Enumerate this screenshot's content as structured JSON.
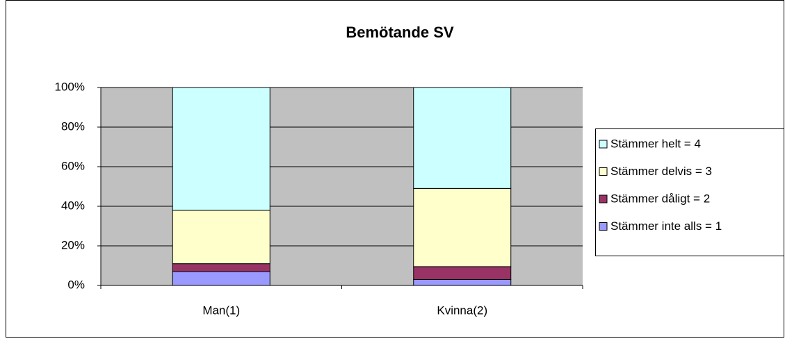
{
  "chart_data": {
    "type": "bar",
    "stacked": true,
    "title": "Bemötande SV",
    "categories": [
      "Man(1)",
      "Kvinna(2)"
    ],
    "series": [
      {
        "name": "Stämmer inte alls = 1",
        "color": "#9999ff",
        "values": [
          7,
          3
        ]
      },
      {
        "name": "Stämmer dåligt = 2",
        "color": "#993366",
        "values": [
          4,
          6.5
        ]
      },
      {
        "name": "Stämmer delvis = 3",
        "color": "#ffffcc",
        "values": [
          27,
          39.5
        ]
      },
      {
        "name": "Stämmer helt = 4",
        "color": "#ccffff",
        "values": [
          62,
          51
        ]
      }
    ],
    "ylim": [
      0,
      100
    ],
    "yticks": [
      {
        "value": 0,
        "label": "0%"
      },
      {
        "value": 20,
        "label": "20%"
      },
      {
        "value": 40,
        "label": "40%"
      },
      {
        "value": 60,
        "label": "60%"
      },
      {
        "value": 80,
        "label": "80%"
      },
      {
        "value": 100,
        "label": "100%"
      }
    ],
    "grid": true,
    "legend": "right"
  }
}
